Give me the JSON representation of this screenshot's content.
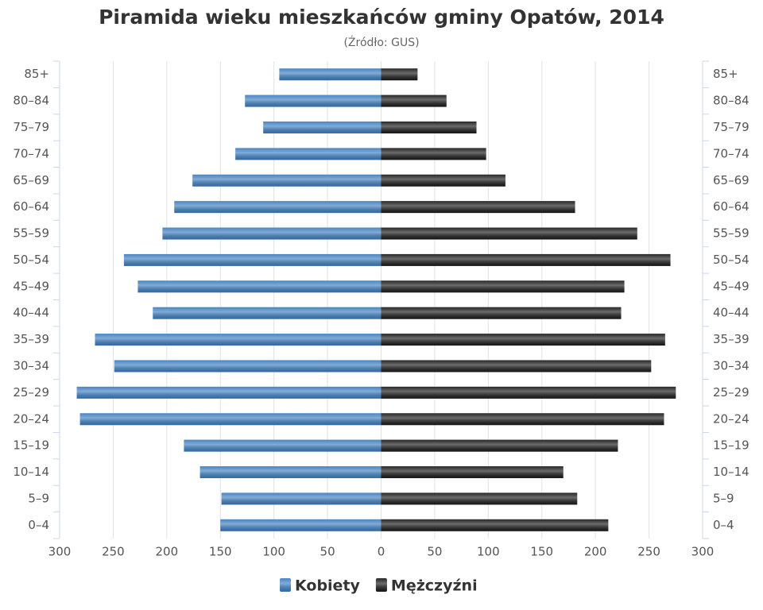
{
  "chart_data": {
    "type": "pyramid",
    "title": "Piramida wieku mieszkańców gminy Opatów, 2014",
    "subtitle": "(Źródło: GUS)",
    "categories": [
      "85+",
      "80–84",
      "75–79",
      "70–74",
      "65–69",
      "60–64",
      "55–59",
      "50–54",
      "45–49",
      "40–44",
      "35–39",
      "30–34",
      "25–29",
      "20–24",
      "15–19",
      "10–14",
      "5–9",
      "0–4"
    ],
    "series": [
      {
        "name": "Kobiety",
        "color": "#3f7fc0",
        "values": [
          -95,
          -127,
          -110,
          -136,
          -176,
          -193,
          -204,
          -240,
          -227,
          -213,
          -267,
          -249,
          -284,
          -281,
          -184,
          -169,
          -149,
          -150
        ]
      },
      {
        "name": "Mężczyźni",
        "color": "#1c1c1c",
        "values": [
          34,
          61,
          89,
          98,
          116,
          181,
          239,
          270,
          227,
          224,
          265,
          252,
          275,
          264,
          221,
          170,
          183,
          212
        ]
      }
    ],
    "xlim": [
      -300,
      300
    ],
    "xticks": [
      {
        "value": -300,
        "label": "300"
      },
      {
        "value": -250,
        "label": "250"
      },
      {
        "value": -200,
        "label": "200"
      },
      {
        "value": -150,
        "label": "150"
      },
      {
        "value": -100,
        "label": "100"
      },
      {
        "value": -50,
        "label": "50"
      },
      0,
      50,
      100,
      150,
      200,
      250,
      300
    ],
    "grid": true
  }
}
